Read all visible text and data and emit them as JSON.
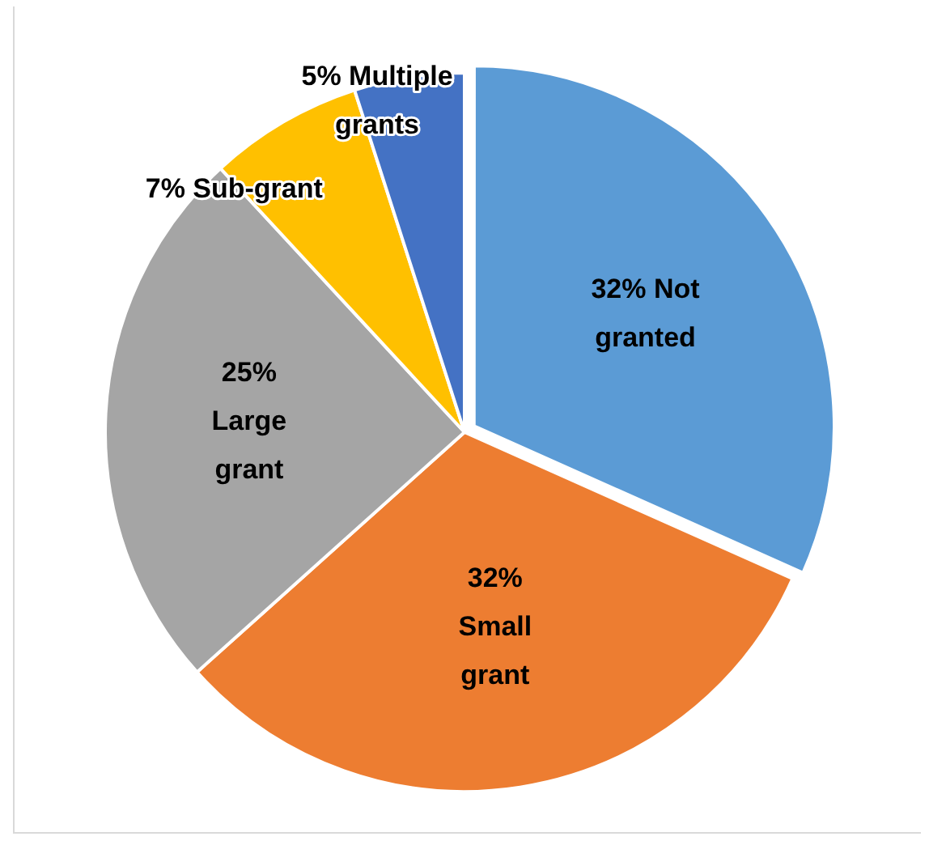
{
  "chart_data": {
    "type": "pie",
    "categories": [
      "Not granted",
      "Small grant",
      "Large grant",
      "Sub-grant",
      "Multiple grants"
    ],
    "values": [
      32,
      32,
      25,
      7,
      5
    ],
    "colors": [
      "#5b9bd5",
      "#ed7d31",
      "#a5a5a5",
      "#ffc000",
      "#4472c4"
    ],
    "value_labels": [
      "32%",
      "32%",
      "25%",
      "7%",
      "5%"
    ],
    "legend": false
  }
}
